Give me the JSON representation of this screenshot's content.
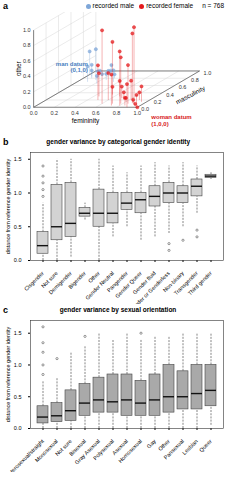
{
  "chart_data": [
    {
      "type": "scatter3d",
      "panel_label": "a",
      "legend": "top-right",
      "grid": true,
      "xlabel": "femininity",
      "ylabel": "masculinity",
      "zlabel": "other",
      "xlim": [
        0,
        1
      ],
      "ylim": [
        0,
        1
      ],
      "zlim": [
        0,
        1
      ],
      "xticks": [
        {
          "value": 0,
          "label": "0.0"
        },
        {
          "value": 0.2,
          "label": "0.2"
        },
        {
          "value": 0.4,
          "label": "0.4"
        },
        {
          "value": 0.6,
          "label": "0.6"
        },
        {
          "value": 0.8,
          "label": "0.8"
        },
        {
          "value": 1,
          "label": "1.0"
        }
      ],
      "yticks": [
        {
          "value": 0,
          "label": "0.0"
        },
        {
          "value": 0.2,
          "label": "0.2"
        },
        {
          "value": 0.4,
          "label": "0.4"
        },
        {
          "value": 0.6,
          "label": "0.6"
        },
        {
          "value": 0.8,
          "label": "0.8"
        },
        {
          "value": 1,
          "label": "1.0"
        }
      ],
      "zticks": [
        {
          "value": 0,
          "label": "0.0"
        },
        {
          "value": 0.2,
          "label": "0.2"
        },
        {
          "value": 0.4,
          "label": "0.4"
        },
        {
          "value": 0.6,
          "label": "0.6"
        },
        {
          "value": 0.8,
          "label": "0.8"
        },
        {
          "value": 1,
          "label": "1.0"
        }
      ],
      "annotations": [
        {
          "text": "n = 768"
        },
        {
          "text": "man datum\n(0,1,0)",
          "x": 0,
          "y": 1,
          "z": 0,
          "color": "#4a7fc1"
        },
        {
          "text": "woman datum\n(1,0,0)",
          "x": 1,
          "y": 0,
          "z": 0,
          "color": "#d7191c"
        }
      ],
      "series": [
        {
          "name": "recorded male",
          "color": "#7ea6d8",
          "marker": "circle",
          "values": [
            [
              0.05,
              0.95,
              0.02
            ],
            [
              0.1,
              0.9,
              0.05
            ],
            [
              0.15,
              0.85,
              0.03
            ],
            [
              0.08,
              0.8,
              0.1
            ],
            [
              0.2,
              0.9,
              0.05
            ],
            [
              0.12,
              1.0,
              0.0
            ],
            [
              0.25,
              0.75,
              0.08
            ],
            [
              0.05,
              0.85,
              0.15
            ],
            [
              0.18,
              0.95,
              0.1
            ],
            [
              0.3,
              0.8,
              0.05
            ],
            [
              0.1,
              0.7,
              0.2
            ],
            [
              0.22,
              0.65,
              0.1
            ],
            [
              0.35,
              0.7,
              0.15
            ],
            [
              0.0,
              0.9,
              0.3
            ],
            [
              0.15,
              0.75,
              0.4
            ]
          ]
        },
        {
          "name": "recorded female",
          "color": "#e41a1c",
          "marker": "circle",
          "values": [
            [
              0.95,
              0.05,
              0.02
            ],
            [
              0.9,
              0.1,
              0.05
            ],
            [
              0.85,
              0.05,
              0.1
            ],
            [
              1.0,
              0.0,
              0.0
            ],
            [
              0.8,
              0.15,
              0.05
            ],
            [
              0.75,
              0.2,
              0.1
            ],
            [
              0.9,
              0.0,
              0.3
            ],
            [
              0.85,
              0.1,
              0.5
            ],
            [
              0.7,
              0.25,
              0.15
            ],
            [
              0.95,
              0.15,
              0.2
            ],
            [
              0.8,
              0.05,
              0.7
            ],
            [
              0.88,
              0.12,
              0.9
            ],
            [
              0.65,
              0.3,
              0.2
            ],
            [
              0.6,
              0.2,
              0.35
            ],
            [
              0.92,
              0.08,
              1.0
            ],
            [
              0.78,
              0.1,
              0.6
            ],
            [
              0.7,
              0.1,
              0.8
            ],
            [
              0.55,
              0.35,
              0.1
            ],
            [
              0.5,
              0.2,
              0.45
            ],
            [
              0.98,
              0.02,
              0.15
            ],
            [
              0.82,
              0.2,
              0.25
            ],
            [
              0.72,
              0.05,
              0.4
            ],
            [
              0.6,
              0.1,
              0.95
            ],
            [
              0.45,
              0.3,
              0.3
            ],
            [
              0.9,
              0.2,
              0.1
            ]
          ]
        }
      ]
    },
    {
      "type": "boxplot",
      "panel_label": "b",
      "title": "gender variance by categorical gender identity",
      "ylabel": "distance from reference gender identity",
      "color": "#d3d3d3",
      "grid": false,
      "ylim": [
        0,
        1.6
      ],
      "yticks": [
        {
          "value": 0,
          "label": "0.0"
        },
        {
          "value": 0.5,
          "label": "0.5"
        },
        {
          "value": 1,
          "label": "1.0"
        },
        {
          "value": 1.5,
          "label": "1.5"
        }
      ],
      "categories": [
        "Cisgender",
        "Not sure",
        "Demigender",
        "Bigender",
        "Other",
        "Gender Neutral",
        "Pangender",
        "Gender Queer",
        "Gender fluid",
        "Agender or Genderless",
        "Non-binary",
        "Transgender",
        "Third gender"
      ],
      "min": [
        0.0,
        0.0,
        0.05,
        0.6,
        0.0,
        0.35,
        0.5,
        0.3,
        0.35,
        0.4,
        0.5,
        0.7,
        1.2
      ],
      "q1": [
        0.1,
        0.3,
        0.35,
        0.65,
        0.5,
        0.55,
        0.75,
        0.7,
        0.8,
        0.85,
        0.85,
        0.95,
        1.22
      ],
      "median": [
        0.22,
        0.5,
        0.55,
        0.7,
        0.7,
        0.7,
        0.85,
        0.9,
        0.95,
        1.0,
        1.0,
        1.1,
        1.25
      ],
      "q3": [
        0.42,
        1.12,
        1.15,
        0.78,
        1.05,
        1.0,
        1.0,
        1.0,
        1.1,
        1.15,
        1.1,
        1.2,
        1.27
      ],
      "max": [
        0.85,
        1.5,
        1.5,
        0.85,
        1.5,
        1.4,
        1.3,
        1.4,
        1.45,
        1.4,
        1.45,
        1.4,
        1.3
      ],
      "outliers": [
        [
          0.95,
          1.05,
          1.15,
          1.25,
          1.4
        ],
        [],
        [],
        [],
        [],
        [],
        [],
        [],
        [],
        [
          0.25,
          0.15
        ],
        [
          0.3
        ],
        [
          0.45,
          0.35
        ],
        []
      ]
    },
    {
      "type": "boxplot",
      "panel_label": "c",
      "title": "gender variance by sexual orientation",
      "ylabel": "distance from reference gender identity",
      "color": "#a9a9a9",
      "grid": false,
      "ylim": [
        0,
        1.7
      ],
      "yticks": [
        {
          "value": 0,
          "label": "0.0"
        },
        {
          "value": 0.5,
          "label": "0.5"
        },
        {
          "value": 1,
          "label": "1.0"
        },
        {
          "value": 1.5,
          "label": "1.5"
        }
      ],
      "categories": [
        "Heterosexual/straight",
        "Monosexual",
        "Not sure",
        "Bisexual",
        "Gray Asexual",
        "Polysexual",
        "Asexual",
        "Homosexual",
        "Gay",
        "Other",
        "Pansexual",
        "Lesbian",
        "Queer"
      ],
      "min": [
        0.0,
        0.0,
        0.0,
        0.0,
        0.0,
        0.0,
        0.0,
        0.0,
        0.0,
        0.0,
        0.0,
        0.0,
        0.05
      ],
      "q1": [
        0.08,
        0.1,
        0.12,
        0.2,
        0.25,
        0.25,
        0.2,
        0.2,
        0.2,
        0.25,
        0.3,
        0.3,
        0.35
      ],
      "median": [
        0.18,
        0.2,
        0.28,
        0.4,
        0.45,
        0.42,
        0.45,
        0.4,
        0.45,
        0.5,
        0.5,
        0.55,
        0.6
      ],
      "q3": [
        0.35,
        0.4,
        0.6,
        0.7,
        0.8,
        0.85,
        0.85,
        0.75,
        0.85,
        1.0,
        0.9,
        1.0,
        1.0
      ],
      "max": [
        0.75,
        0.8,
        1.2,
        1.3,
        1.5,
        1.4,
        1.5,
        1.4,
        1.45,
        1.45,
        1.5,
        1.5,
        1.5
      ],
      "outliers": [
        [
          0.85,
          1.0,
          1.2,
          1.35,
          1.6
        ],
        [
          1.1
        ],
        [],
        [
          1.45
        ],
        [],
        [],
        [],
        [
          1.5
        ],
        [],
        [],
        [],
        [],
        []
      ]
    }
  ]
}
